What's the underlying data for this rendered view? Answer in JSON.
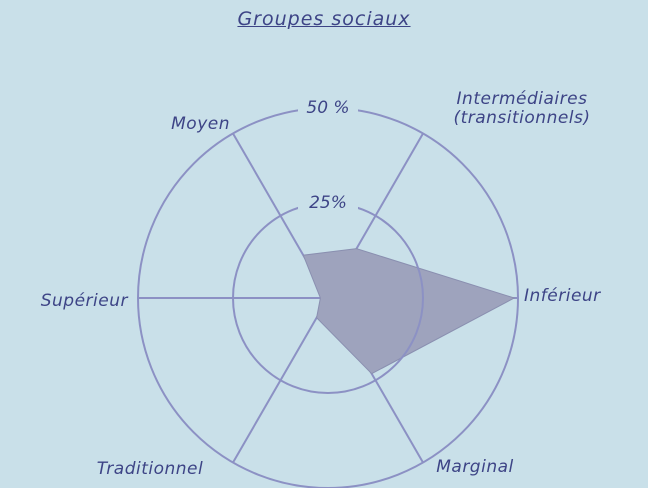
{
  "chart_data": {
    "type": "radar",
    "title": "Groupes sociaux",
    "categories": [
      "Inférieur",
      "Intermédiaires (transitionnels)",
      "Moyen",
      "Supérieur",
      "Traditionnel",
      "Marginal"
    ],
    "values": [
      49,
      15,
      13,
      2,
      6,
      23
    ],
    "color": "#9ea3bd",
    "rlim": [
      0,
      50
    ],
    "rticks": [
      {
        "value": 25,
        "label": "25%"
      },
      {
        "value": 50,
        "label": "50 %"
      }
    ]
  }
}
